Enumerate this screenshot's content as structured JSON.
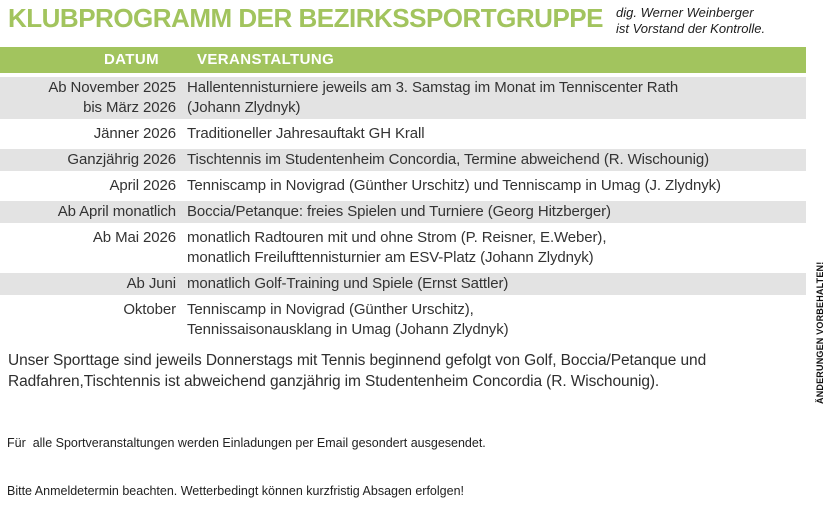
{
  "colors": {
    "accent_green": "#a2c45e",
    "row_shade_gray": "#e3e3e3",
    "text_dark": "#303030"
  },
  "header": {
    "title": "KLUBPROGRAMM DER BEZIRKSSPORTGRUPPE",
    "attribution_line1": "dig. Werner Weinberger",
    "attribution_line2": "ist Vorstand der Kontrolle."
  },
  "table": {
    "headers": [
      "DATUM",
      "VERANSTALTUNG"
    ],
    "rows": [
      {
        "date": "Ab November 2025\nbis März 2026",
        "event": "Hallentennisturniere jeweils am 3. Samstag im Monat im Tenniscenter Rath\n(Johann Zlydnyk)"
      },
      {
        "date": "Jänner 2026",
        "event": "Traditioneller Jahresauftakt GH Krall"
      },
      {
        "date": "Ganzjährig 2026",
        "event": "Tischtennis im Studentenheim Concordia, Termine abweichend (R. Wischounig)"
      },
      {
        "date": "April 2026",
        "event": "Tenniscamp in Novigrad (Günther Urschitz) und Tenniscamp in Umag (J. Zlydnyk)"
      },
      {
        "date": "Ab April monatlich",
        "event": "Boccia/Petanque: freies Spielen und Turniere (Georg Hitzberger)"
      },
      {
        "date": "Ab Mai 2026",
        "event": "monatlich Radtouren mit und ohne Strom (P. Reisner, E.Weber),\nmonatlich Freilufttennisturnier am ESV-Platz (Johann Zlydnyk)"
      },
      {
        "date": "Ab Juni",
        "event": "monatlich Golf-Training und Spiele (Ernst Sattler)"
      },
      {
        "date": "Oktober",
        "event": "Tenniscamp in Novigrad (Günther Urschitz),\nTennissaisonausklang in Umag (Johann Zlydnyk)"
      }
    ]
  },
  "footer": {
    "paragraph": "Unser Sporttage sind jeweils Donnerstags mit Tennis beginnend gefolgt von Golf, Boccia/Petanque und Radfahren,Tischtennis ist abweichend ganzjährig im Studentenheim Concordia (R. Wischounig).",
    "note_line1": "Für  alle Sportveranstaltungen werden Einladungen per Email gesondert ausgesendet.",
    "note_line2": "Bitte Anmeldetermin beachten. Wetterbedingt können kurzfristig Absagen erfolgen!"
  },
  "side_note": "ÄNDERUNGEN VORBEHALTEN!"
}
